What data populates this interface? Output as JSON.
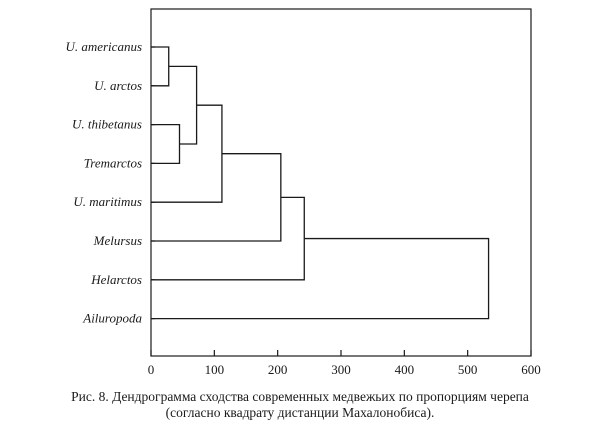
{
  "figure": {
    "caption_line1": "Рис. 8. Дендрограмма сходства современных медвежьих по пропорциям черепа",
    "caption_line2": "(согласно квадрату дистанции Махалонобиса)."
  },
  "chart_data": {
    "type": "dendrogram",
    "title": "",
    "xlabel": "",
    "ylabel": "",
    "xlim": [
      0,
      600
    ],
    "xticks": [
      0,
      100,
      200,
      300,
      400,
      500,
      600
    ],
    "leaves": [
      "U. americanus",
      "U. arctos",
      "U. thibetanus",
      "Tremarctos",
      "U. maritimus",
      "Melursus",
      "Helarctos",
      "Ailuropoda"
    ],
    "merges": [
      {
        "id": "n1",
        "left": "U. americanus",
        "right": "U. arctos",
        "height": 28
      },
      {
        "id": "n2",
        "left": "U. thibetanus",
        "right": "Tremarctos",
        "height": 45
      },
      {
        "id": "n3",
        "left": "n1",
        "right": "n2",
        "height": 72
      },
      {
        "id": "n4",
        "left": "n3",
        "right": "U. maritimus",
        "height": 112
      },
      {
        "id": "n5",
        "left": "n4",
        "right": "Melursus",
        "height": 205
      },
      {
        "id": "n6",
        "left": "n5",
        "right": "Helarctos",
        "height": 242
      },
      {
        "id": "n7",
        "left": "n6",
        "right": "Ailuropoda",
        "height": 533
      }
    ]
  }
}
